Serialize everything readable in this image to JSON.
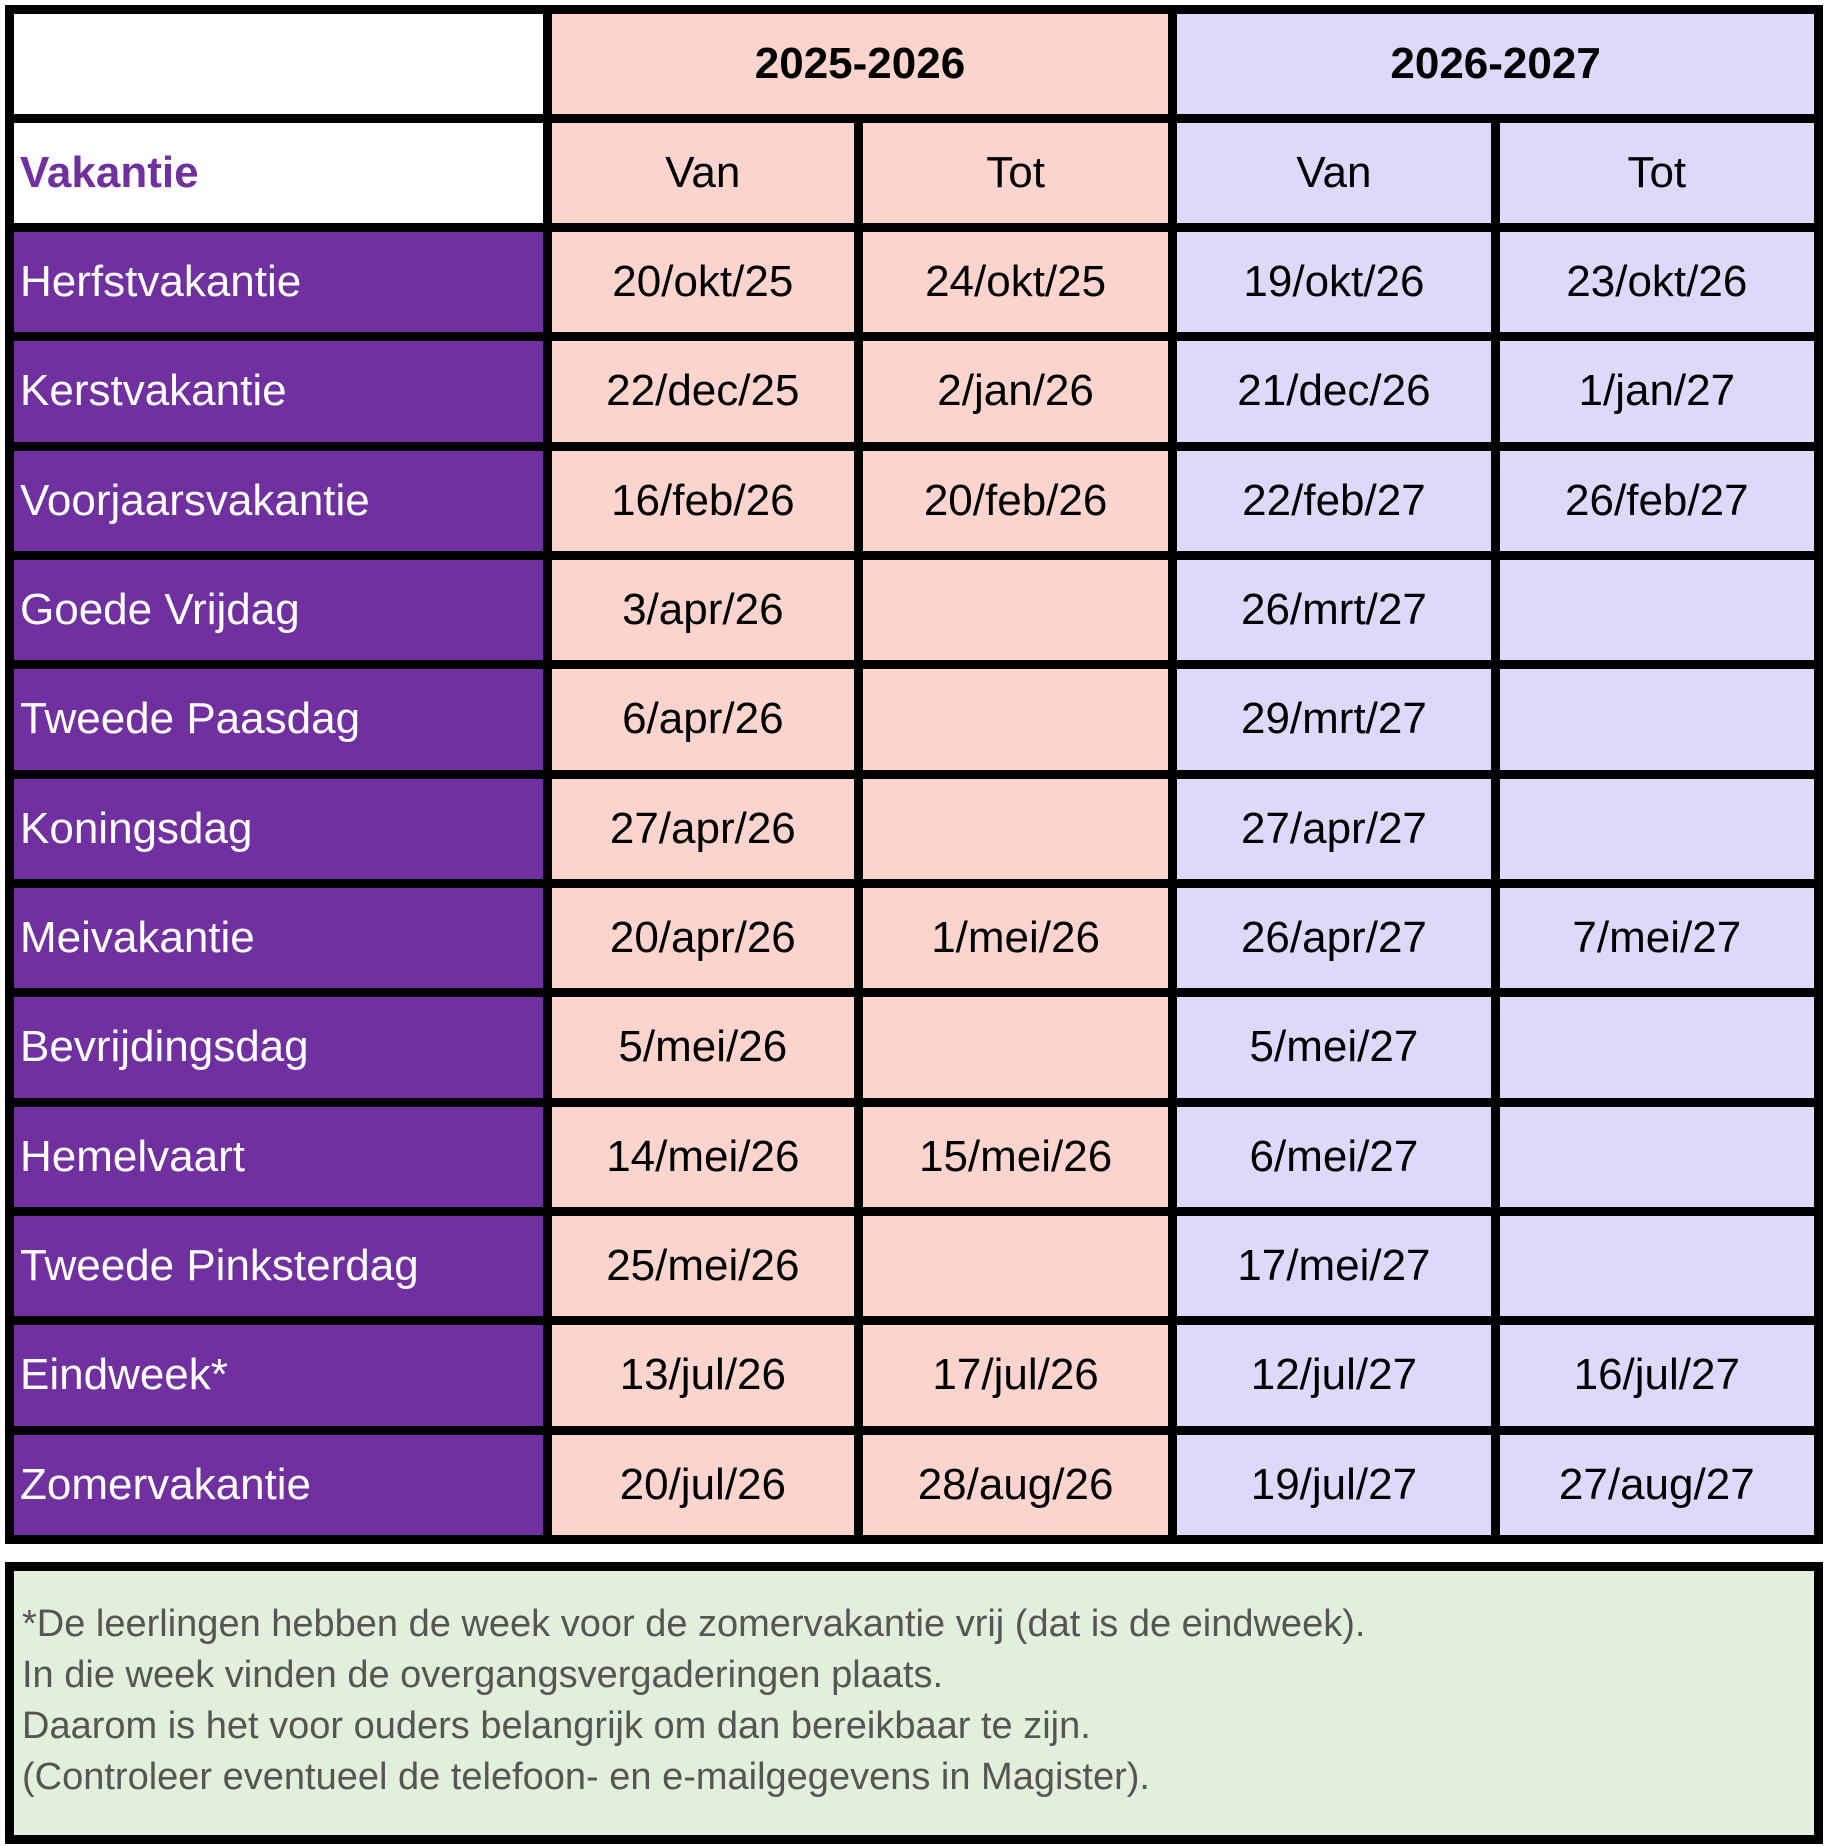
{
  "header": {
    "years": [
      "2025-2026",
      "2026-2027"
    ],
    "label": "Vakantie",
    "columns": [
      "Van",
      "Tot",
      "Van",
      "Tot"
    ]
  },
  "rows": [
    {
      "name": "Herfstvakantie",
      "dates": [
        "20/okt/25",
        "24/okt/25",
        "19/okt/26",
        "23/okt/26"
      ]
    },
    {
      "name": "Kerstvakantie",
      "dates": [
        "22/dec/25",
        "2/jan/26",
        "21/dec/26",
        "1/jan/27"
      ]
    },
    {
      "name": "Voorjaarsvakantie",
      "dates": [
        "16/feb/26",
        "20/feb/26",
        "22/feb/27",
        "26/feb/27"
      ]
    },
    {
      "name": "Goede Vrijdag",
      "dates": [
        "3/apr/26",
        null,
        "26/mrt/27",
        null
      ]
    },
    {
      "name": "Tweede Paasdag",
      "dates": [
        "6/apr/26",
        null,
        "29/mrt/27",
        null
      ]
    },
    {
      "name": "Koningsdag",
      "dates": [
        "27/apr/26",
        null,
        "27/apr/27",
        null
      ]
    },
    {
      "name": "Meivakantie",
      "dates": [
        "20/apr/26",
        "1/mei/26",
        "26/apr/27",
        "7/mei/27"
      ]
    },
    {
      "name": "Bevrijdingsdag",
      "dates": [
        "5/mei/26",
        null,
        "5/mei/27",
        null
      ]
    },
    {
      "name": "Hemelvaart",
      "dates": [
        "14/mei/26",
        "15/mei/26",
        "6/mei/27",
        null
      ]
    },
    {
      "name": "Tweede Pinksterdag",
      "dates": [
        "25/mei/26",
        null,
        "17/mei/27",
        null
      ]
    },
    {
      "name": "Eindweek*",
      "dates": [
        "13/jul/26",
        "17/jul/26",
        "12/jul/27",
        "16/jul/27"
      ]
    },
    {
      "name": "Zomervakantie",
      "dates": [
        "20/jul/26",
        "28/aug/26",
        "19/jul/27",
        "27/aug/27"
      ]
    }
  ],
  "note": {
    "lines": [
      "*De leerlingen hebben de week voor de zomervakantie vrij (dat is de eindweek).",
      "In die week vinden de overgangsvergaderingen plaats.",
      "Daarom is het voor ouders belangrijk om dan bereikbaar te zijn.",
      "(Controleer eventueel de telefoon- en e-mailgegevens in Magister)."
    ]
  }
}
